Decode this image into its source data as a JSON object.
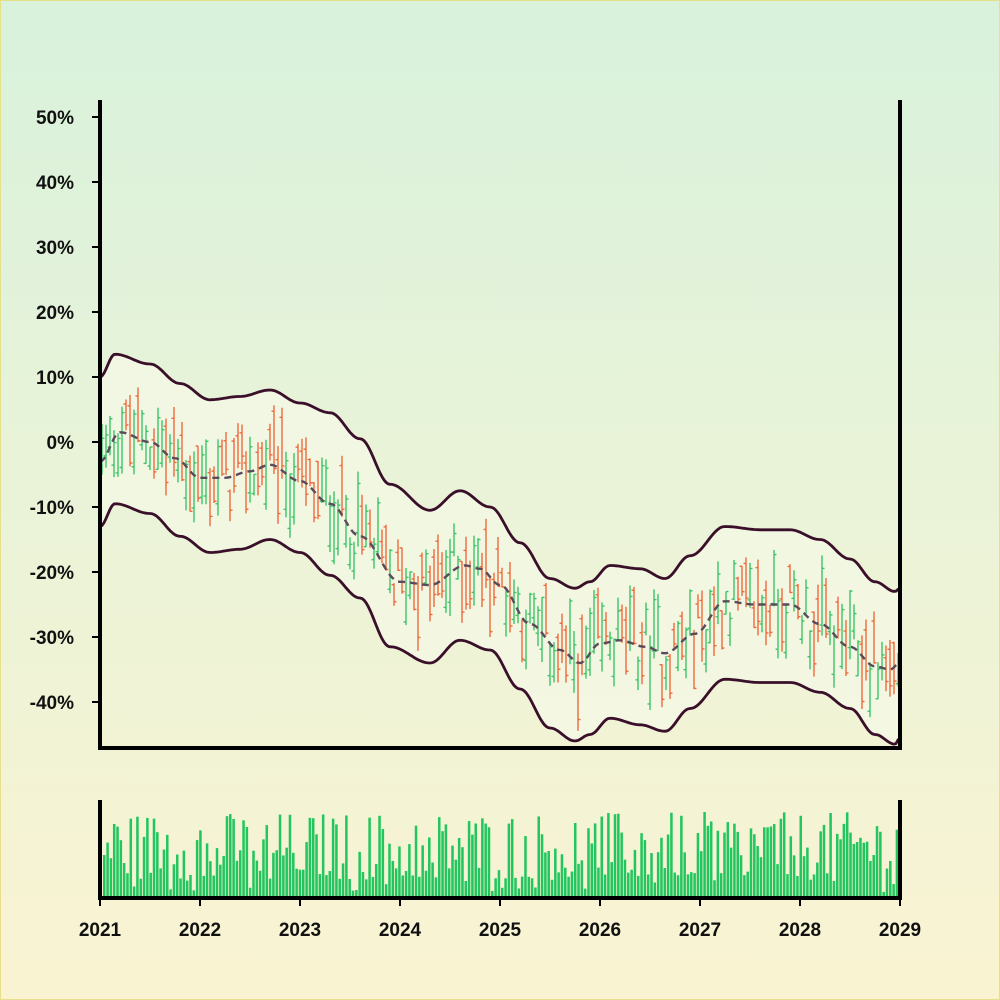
{
  "chart_data": [
    {
      "type": "ohlc",
      "panel": "price",
      "x_unit": "year",
      "xlim": [
        2021,
        2029
      ],
      "ylim": [
        -47,
        52
      ],
      "y_format": "percent",
      "yticks": [
        -40,
        -30,
        -20,
        -10,
        0,
        10,
        20,
        30,
        40,
        50
      ],
      "ytick_labels": [
        "-40%",
        "-30%",
        "-20%",
        "-10%",
        "0%",
        "10%",
        "20%",
        "30%",
        "40%",
        "50%"
      ],
      "colors": {
        "up": "#3cc469",
        "down": "#ee6a3c",
        "envelope": "#3a0f2a",
        "midline": "#5a4a5a",
        "band_fill": "#f4f8e6"
      },
      "midline_keypoints": {
        "x": [
          2021.0,
          2021.2,
          2021.5,
          2021.75,
          2022.0,
          2022.25,
          2022.5,
          2022.7,
          2023.0,
          2023.3,
          2023.6,
          2024.0,
          2024.3,
          2024.65,
          2024.8,
          2025.0,
          2025.3,
          2025.6,
          2025.8,
          2026.0,
          2026.2,
          2026.45,
          2026.65,
          2026.95,
          2027.25,
          2027.55,
          2027.9,
          2028.2,
          2028.5,
          2028.75,
          2028.9,
          2029.0
        ],
        "y": [
          -3.0,
          1.5,
          0.0,
          -2.5,
          -5.5,
          -5.5,
          -4.5,
          -3.5,
          -6.0,
          -9.5,
          -14.5,
          -21.5,
          -22.0,
          -19.0,
          -19.5,
          -22.0,
          -28.0,
          -32.0,
          -34.0,
          -31.0,
          -30.5,
          -31.5,
          -32.5,
          -29.5,
          -24.5,
          -25.0,
          -25.0,
          -28.0,
          -31.5,
          -34.5,
          -35.0,
          -34.0
        ]
      },
      "upper_envelope_keypoints": {
        "x": [
          2021.0,
          2021.15,
          2021.5,
          2021.8,
          2022.1,
          2022.4,
          2022.7,
          2023.0,
          2023.3,
          2023.6,
          2023.9,
          2024.3,
          2024.6,
          2024.9,
          2025.2,
          2025.5,
          2025.75,
          2025.9,
          2026.1,
          2026.4,
          2026.65,
          2026.9,
          2027.25,
          2027.6,
          2027.9,
          2028.2,
          2028.5,
          2028.75,
          2028.95,
          2029.0
        ],
        "y": [
          10.0,
          13.5,
          12.0,
          9.0,
          6.5,
          7.0,
          8.0,
          6.0,
          4.5,
          0.5,
          -6.5,
          -10.5,
          -7.5,
          -10.0,
          -15.5,
          -21.0,
          -22.5,
          -21.5,
          -19.0,
          -19.5,
          -21.0,
          -17.5,
          -13.0,
          -13.5,
          -13.5,
          -15.0,
          -18.0,
          -21.5,
          -23.0,
          -22.5
        ]
      },
      "lower_envelope_keypoints": {
        "x": [
          2021.0,
          2021.15,
          2021.5,
          2021.8,
          2022.1,
          2022.4,
          2022.7,
          2023.0,
          2023.3,
          2023.6,
          2023.9,
          2024.3,
          2024.6,
          2024.9,
          2025.2,
          2025.5,
          2025.75,
          2025.9,
          2026.1,
          2026.4,
          2026.65,
          2026.9,
          2027.25,
          2027.6,
          2027.9,
          2028.2,
          2028.5,
          2028.75,
          2028.95,
          2029.0
        ],
        "y": [
          -13.0,
          -9.5,
          -11.0,
          -14.5,
          -17.0,
          -16.5,
          -15.0,
          -17.0,
          -20.5,
          -24.0,
          -31.5,
          -34.0,
          -30.5,
          -32.0,
          -38.0,
          -44.0,
          -46.0,
          -45.0,
          -42.5,
          -43.5,
          -44.5,
          -41.0,
          -36.5,
          -37.0,
          -37.0,
          -38.5,
          -41.0,
          -45.0,
          -46.5,
          -45.5
        ]
      }
    },
    {
      "type": "bar",
      "panel": "volume",
      "x_unit": "year",
      "xlim": [
        2021,
        2029
      ],
      "xticks": [
        2021,
        2022,
        2023,
        2024,
        2025,
        2026,
        2027,
        2028,
        2029
      ],
      "xtick_labels": [
        "2021",
        "2022",
        "2023",
        "2024",
        "2025",
        "2026",
        "2027",
        "2028",
        "2029"
      ],
      "color": "#22c55e",
      "y_relative_max": 1.0
    }
  ]
}
